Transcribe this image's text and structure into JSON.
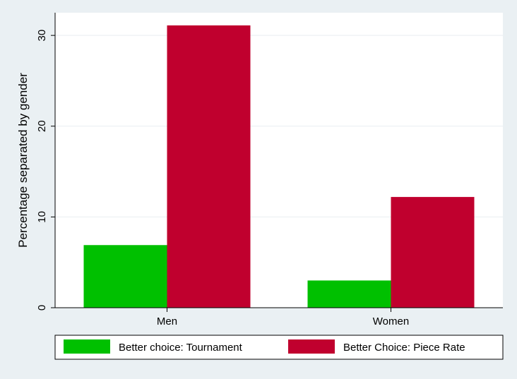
{
  "chart_data": {
    "type": "bar",
    "title": "",
    "xlabel": "",
    "ylabel": "Percentage separated by gender",
    "categories": [
      "Men",
      "Women"
    ],
    "series": [
      {
        "name": "Better choice: Tournament",
        "values": [
          6.9,
          3.0
        ],
        "color": "#00c000"
      },
      {
        "name": "Better Choice: Piece Rate",
        "values": [
          31.1,
          12.2
        ],
        "color": "#c0002e"
      }
    ],
    "ylim": [
      0,
      32.5
    ],
    "yticks": [
      0,
      10,
      20,
      30
    ],
    "grid": true,
    "legend_position": "bottom"
  },
  "colors": {
    "page_background": "#eaf0f3",
    "plot_background": "#ffffff",
    "gridline": "#e9eef1",
    "axis": "#000000"
  }
}
